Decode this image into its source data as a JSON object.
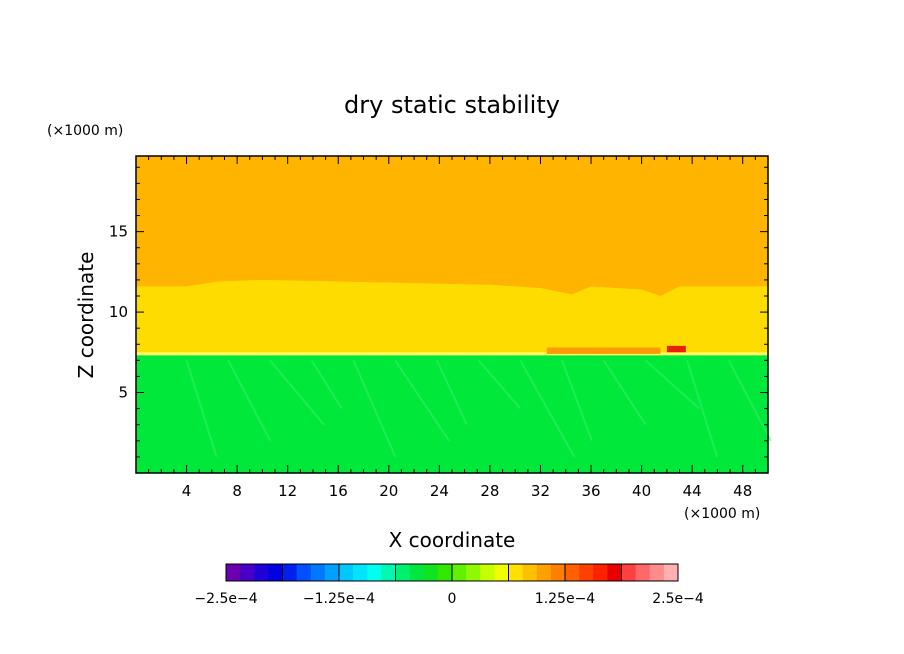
{
  "chart_data": {
    "type": "heatmap",
    "title": "dry static stability",
    "xlabel": "X coordinate",
    "ylabel": "Z coordinate",
    "x_unit": "(×1000 m)",
    "z_unit": "(×1000 m)",
    "xlim": [
      0,
      50
    ],
    "ylim": [
      0,
      19.7
    ],
    "x_ticks": [
      4,
      8,
      12,
      16,
      20,
      24,
      28,
      32,
      36,
      40,
      44,
      48
    ],
    "y_ticks": [
      5,
      10,
      15
    ],
    "regions": [
      {
        "name": "upper",
        "color": "#ffb400",
        "boundary_x": [
          0,
          4,
          6.5,
          10,
          16,
          22,
          28,
          32,
          34.5,
          36,
          40,
          41.5,
          43,
          46,
          50
        ],
        "boundary_top": [
          11.6,
          11.6,
          11.9,
          12.0,
          11.9,
          11.8,
          11.7,
          11.5,
          11.1,
          11.6,
          11.4,
          11.0,
          11.6,
          11.6,
          11.6
        ],
        "top": 19.7
      },
      {
        "name": "middle",
        "color": "#ffdc00",
        "bottom": 7.4
      },
      {
        "name": "lower",
        "color": "#00e83a",
        "bottom": 0
      }
    ],
    "features": [
      {
        "name": "inversion-line",
        "color": "#ffff66",
        "x": [
          0,
          50
        ],
        "z": 7.4
      },
      {
        "name": "warm-patch-left",
        "color": "#ff9b00",
        "x": [
          32.5,
          41.5
        ],
        "z": [
          7.4,
          7.8
        ]
      },
      {
        "name": "warm-patch-right",
        "color": "#e82000",
        "x": [
          42,
          43.5
        ],
        "z": [
          7.5,
          7.9
        ]
      }
    ],
    "colorbar": {
      "min": -0.00025,
      "max": 0.00025,
      "tick_labels": [
        "−2.5e−4",
        "−1.25e−4",
        "0",
        "1.25e−4",
        "2.5e−4"
      ],
      "tick_values": [
        -0.00025,
        -0.000125,
        0,
        0.000125,
        0.00025
      ],
      "colors": [
        "#6a00b0",
        "#4800c8",
        "#2000d8",
        "#0000e0",
        "#0020f0",
        "#0050ff",
        "#0078ff",
        "#00a0ff",
        "#00c8ff",
        "#00e4ff",
        "#00ffee",
        "#00f8b0",
        "#00f070",
        "#00e840",
        "#10e420",
        "#30e800",
        "#60f000",
        "#90f800",
        "#c8ff00",
        "#f0ff00",
        "#ffe000",
        "#ffc000",
        "#ffa000",
        "#ff8000",
        "#ff6000",
        "#ff4000",
        "#ff2000",
        "#e80000",
        "#ff4040",
        "#ff6868",
        "#ff8c8c",
        "#ffb0b0"
      ]
    }
  }
}
